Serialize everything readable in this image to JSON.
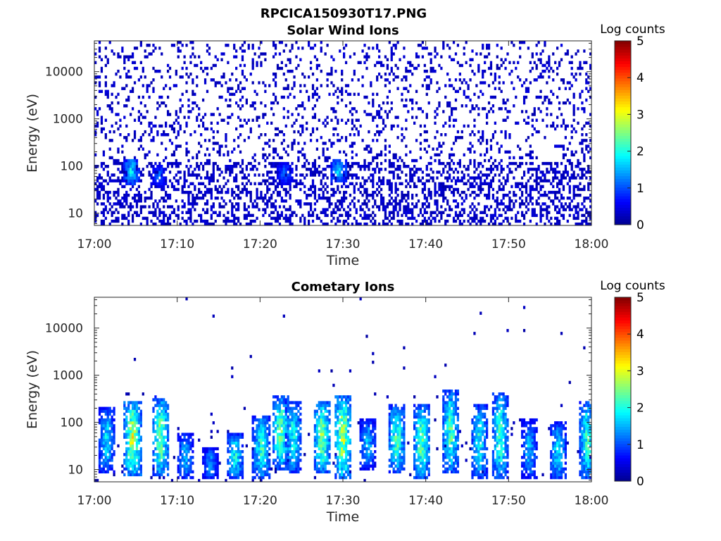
{
  "figure": {
    "title": "RPCICA150930T17.PNG"
  },
  "colorscale": {
    "name": "jet",
    "stops": [
      "#00008f",
      "#0000ff",
      "#0080ff",
      "#00ffff",
      "#80ff80",
      "#ffff00",
      "#ff8000",
      "#ff0000",
      "#800000"
    ]
  },
  "chart_data": [
    {
      "type": "heatmap",
      "title": "Solar Wind Ions",
      "xlabel": "Time",
      "ylabel": "Energy (eV)",
      "x_ticks": [
        "17:00",
        "17:10",
        "17:20",
        "17:30",
        "17:40",
        "17:50",
        "18:00"
      ],
      "x_range_minutes": [
        0,
        60
      ],
      "y_scale": "log",
      "y_range": [
        5.5,
        45000
      ],
      "y_ticks": [
        10,
        100,
        1000,
        10000
      ],
      "y_tick_labels": [
        "10",
        "100",
        "1000",
        "10000"
      ],
      "colorbar": {
        "label": "Log counts",
        "range": [
          0,
          5
        ],
        "ticks": [
          "0",
          "1",
          "2",
          "3",
          "4",
          "5"
        ]
      },
      "bursts": [
        {
          "minute": 4.5,
          "e_low": 40,
          "e_high": 150,
          "peak": 1.8
        },
        {
          "minute": 7.8,
          "e_low": 35,
          "e_high": 110,
          "peak": 1.1
        },
        {
          "minute": 23.0,
          "e_low": 40,
          "e_high": 120,
          "peak": 1.1
        },
        {
          "minute": 29.5,
          "e_low": 45,
          "e_high": 140,
          "peak": 1.7
        }
      ],
      "background": {
        "description_level": 0.3,
        "density_high_energy": 0.16,
        "density_low_energy": 0.4
      }
    },
    {
      "type": "heatmap",
      "title": "Cometary Ions",
      "xlabel": "Time",
      "ylabel": "Energy (eV)",
      "x_ticks": [
        "17:00",
        "17:10",
        "17:20",
        "17:30",
        "17:40",
        "17:50",
        "18:00"
      ],
      "x_range_minutes": [
        0,
        60
      ],
      "y_scale": "log",
      "y_range": [
        5.5,
        45000
      ],
      "y_ticks": [
        10,
        100,
        1000,
        10000
      ],
      "y_tick_labels": [
        "10",
        "100",
        "1000",
        "10000"
      ],
      "colorbar": {
        "label": "Log counts",
        "range": [
          0,
          5
        ],
        "ticks": [
          "0",
          "1",
          "2",
          "3",
          "4",
          "5"
        ]
      },
      "bursts": [
        {
          "minute": 1.5,
          "e_low": 8,
          "e_high": 220,
          "peak": 1.8
        },
        {
          "minute": 4.6,
          "e_low": 7,
          "e_high": 300,
          "peak": 2.9
        },
        {
          "minute": 8.0,
          "e_low": 7,
          "e_high": 350,
          "peak": 2.5
        },
        {
          "minute": 11.0,
          "e_low": 6,
          "e_high": 60,
          "peak": 1.6
        },
        {
          "minute": 14.0,
          "e_low": 6,
          "e_high": 30,
          "peak": 1.4
        },
        {
          "minute": 17.0,
          "e_low": 6,
          "e_high": 60,
          "peak": 2.0
        },
        {
          "minute": 20.2,
          "e_low": 6,
          "e_high": 150,
          "peak": 2.2
        },
        {
          "minute": 22.5,
          "e_low": 10,
          "e_high": 380,
          "peak": 2.5
        },
        {
          "minute": 24.0,
          "e_low": 8,
          "e_high": 300,
          "peak": 2.0
        },
        {
          "minute": 27.5,
          "e_low": 8,
          "e_high": 300,
          "peak": 2.6
        },
        {
          "minute": 30.0,
          "e_low": 6,
          "e_high": 380,
          "peak": 2.8
        },
        {
          "minute": 33.0,
          "e_low": 10,
          "e_high": 120,
          "peak": 1.6
        },
        {
          "minute": 36.5,
          "e_low": 8,
          "e_high": 250,
          "peak": 2.3
        },
        {
          "minute": 39.5,
          "e_low": 6,
          "e_high": 250,
          "peak": 2.4
        },
        {
          "minute": 43.0,
          "e_low": 8,
          "e_high": 500,
          "peak": 2.3
        },
        {
          "minute": 46.5,
          "e_low": 6,
          "e_high": 250,
          "peak": 2.0
        },
        {
          "minute": 49.0,
          "e_low": 6,
          "e_high": 450,
          "peak": 2.2
        },
        {
          "minute": 52.5,
          "e_low": 6,
          "e_high": 120,
          "peak": 1.6
        },
        {
          "minute": 56.0,
          "e_low": 6,
          "e_high": 100,
          "peak": 1.9
        },
        {
          "minute": 59.5,
          "e_low": 6,
          "e_high": 300,
          "peak": 2.2
        }
      ],
      "background": {
        "description_level": 0.2,
        "density_high_energy": 0.004,
        "density_low_energy": 0.02
      }
    }
  ]
}
